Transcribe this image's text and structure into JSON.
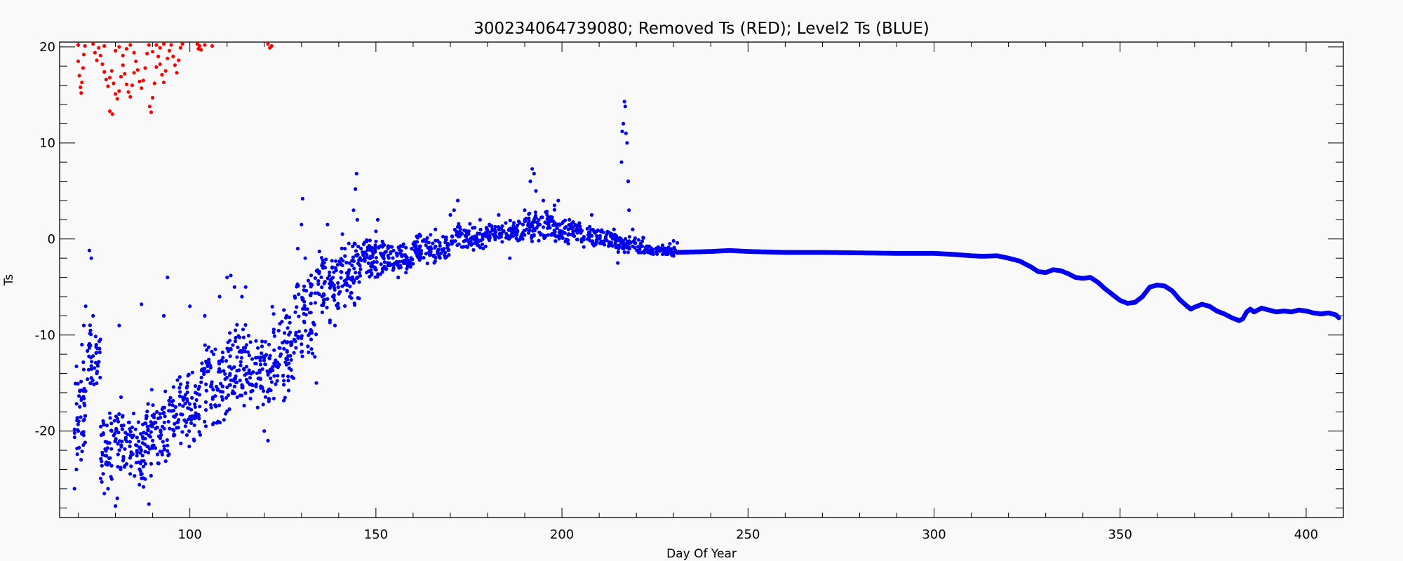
{
  "chart_data": {
    "type": "scatter",
    "title": "300234064739080; Removed Ts (RED); Level2 Ts (BLUE)",
    "xlabel": "Day Of Year",
    "ylabel": "Ts",
    "xlim": [
      65,
      410
    ],
    "ylim": [
      -29,
      20.5
    ],
    "x_ticks": [
      100,
      150,
      200,
      250,
      300,
      350,
      400
    ],
    "y_ticks": [
      -20,
      -10,
      0,
      10,
      20
    ],
    "x_minor_step": 10,
    "y_minor_step": 2,
    "grid": false,
    "colors": {
      "removed": "#ff0000",
      "level2": "#0000ee"
    },
    "series": [
      {
        "key": "removed",
        "color": "#ff0000",
        "points": [
          [
            70,
            20.2
          ],
          [
            70,
            18.5
          ],
          [
            70.3,
            17.0
          ],
          [
            70.6,
            15.8
          ],
          [
            70.8,
            15.2
          ],
          [
            71,
            16.3
          ],
          [
            71.3,
            17.8
          ],
          [
            71.5,
            19.2
          ],
          [
            71.8,
            20.1
          ],
          [
            74,
            20.3
          ],
          [
            74.5,
            19.4
          ],
          [
            75,
            18.6
          ],
          [
            75.5,
            19.9
          ],
          [
            76,
            19.1
          ],
          [
            76.5,
            18.2
          ],
          [
            77,
            17.4
          ],
          [
            77.5,
            16.6
          ],
          [
            78,
            15.9
          ],
          [
            78.5,
            16.8
          ],
          [
            79,
            17.5
          ],
          [
            79.5,
            16.2
          ],
          [
            80,
            15.1
          ],
          [
            80.5,
            14.6
          ],
          [
            81,
            15.4
          ],
          [
            81.5,
            16.9
          ],
          [
            82,
            18.1
          ],
          [
            82.5,
            17.2
          ],
          [
            83,
            16.1
          ],
          [
            83.5,
            15.3
          ],
          [
            84,
            14.8
          ],
          [
            84.5,
            16.0
          ],
          [
            85,
            17.3
          ],
          [
            85.5,
            18.5
          ],
          [
            86,
            17.6
          ],
          [
            86.5,
            16.4
          ],
          [
            87,
            15.7
          ],
          [
            87.5,
            16.5
          ],
          [
            88,
            17.8
          ],
          [
            88.5,
            19.3
          ],
          [
            89,
            20.2
          ],
          [
            77,
            20.1
          ],
          [
            78.5,
            13.3
          ],
          [
            79.2,
            13.0
          ],
          [
            80,
            19.6
          ],
          [
            81,
            20.0
          ],
          [
            82,
            19.1
          ],
          [
            83,
            19.8
          ],
          [
            84,
            20.2
          ],
          [
            85,
            19.4
          ],
          [
            89.2,
            13.8
          ],
          [
            89.6,
            13.2
          ],
          [
            90,
            14.7
          ],
          [
            90.5,
            16.2
          ],
          [
            91,
            17.9
          ],
          [
            91.5,
            19.0
          ],
          [
            92,
            18.2
          ],
          [
            92.5,
            17.1
          ],
          [
            93,
            16.3
          ],
          [
            93.5,
            17.5
          ],
          [
            94,
            18.8
          ],
          [
            94.5,
            19.6
          ],
          [
            95,
            20.2
          ],
          [
            95.5,
            19.0
          ],
          [
            96,
            18.1
          ],
          [
            96.5,
            17.3
          ],
          [
            97,
            18.6
          ],
          [
            97.5,
            19.9
          ],
          [
            98,
            20.3
          ],
          [
            90,
            19.5
          ],
          [
            91,
            20.2
          ],
          [
            92,
            19.9
          ],
          [
            93,
            20.3
          ],
          [
            102,
            20.3
          ],
          [
            102.3,
            19.8
          ],
          [
            102.6,
            20.1
          ],
          [
            103,
            19.7
          ],
          [
            104,
            20.2
          ],
          [
            106,
            20.1
          ],
          [
            121,
            20.3
          ],
          [
            121.5,
            19.9
          ],
          [
            122,
            20.1
          ]
        ]
      },
      {
        "key": "level2",
        "color": "#0000ee",
        "segments": [
          {
            "x0": 69,
            "x1": 72,
            "base": -18,
            "spread": 7.5,
            "n": 45
          },
          {
            "x0": 72,
            "x1": 76,
            "base": -12,
            "spread": 4,
            "n": 40
          },
          {
            "x0": 76,
            "x1": 82,
            "base": -21,
            "spread": 5,
            "n": 70
          },
          {
            "x0": 82,
            "x1": 88,
            "base": -22,
            "spread": 4,
            "n": 70
          },
          {
            "x0": 88,
            "x1": 95,
            "base": -20,
            "spread": 5,
            "n": 80
          },
          {
            "x0": 95,
            "x1": 103,
            "base": -18,
            "spread": 5,
            "n": 90
          },
          {
            "x0": 103,
            "x1": 110,
            "base": -15,
            "spread": 5,
            "n": 80
          },
          {
            "x0": 110,
            "x1": 116,
            "base": -13,
            "spread": 5,
            "n": 80
          },
          {
            "x0": 116,
            "x1": 122,
            "base": -14,
            "spread": 4,
            "n": 70
          },
          {
            "x0": 122,
            "x1": 128,
            "base": -12,
            "spread": 6,
            "n": 70
          },
          {
            "x0": 128,
            "x1": 134,
            "base": -8,
            "spread": 5,
            "n": 70
          },
          {
            "x0": 134,
            "x1": 140,
            "base": -5,
            "spread": 4,
            "n": 70
          },
          {
            "x0": 140,
            "x1": 146,
            "base": -4,
            "spread": 4,
            "n": 70
          },
          {
            "x0": 146,
            "x1": 152,
            "base": -2,
            "spread": 2.5,
            "n": 70
          },
          {
            "x0": 152,
            "x1": 160,
            "base": -2,
            "spread": 1.8,
            "n": 80
          },
          {
            "x0": 160,
            "x1": 170,
            "base": -1,
            "spread": 1.8,
            "n": 90
          },
          {
            "x0": 170,
            "x1": 180,
            "base": 0.2,
            "spread": 1.5,
            "n": 90
          },
          {
            "x0": 180,
            "x1": 190,
            "base": 0.8,
            "spread": 1.2,
            "n": 90
          },
          {
            "x0": 190,
            "x1": 198,
            "base": 1.5,
            "spread": 2.0,
            "n": 80
          },
          {
            "x0": 198,
            "x1": 205,
            "base": 0.8,
            "spread": 1.5,
            "n": 70
          },
          {
            "x0": 205,
            "x1": 215,
            "base": 0.2,
            "spread": 1.2,
            "n": 80
          },
          {
            "x0": 215,
            "x1": 222,
            "base": -0.6,
            "spread": 1.0,
            "n": 60
          },
          {
            "x0": 222,
            "x1": 231,
            "base": -1.2,
            "spread": 0.6,
            "n": 60
          }
        ],
        "extra_points": [
          [
            69,
            -26
          ],
          [
            69.5,
            -24
          ],
          [
            70,
            -20
          ],
          [
            71,
            -11
          ],
          [
            71.5,
            -9
          ],
          [
            72,
            -7
          ],
          [
            73,
            -1.2
          ],
          [
            73.5,
            -2
          ],
          [
            74,
            -8
          ],
          [
            75,
            -14
          ],
          [
            77,
            -26.5
          ],
          [
            78,
            -26
          ],
          [
            79,
            -25
          ],
          [
            80,
            -27.8
          ],
          [
            80.5,
            -27
          ],
          [
            81,
            -9
          ],
          [
            87,
            -6.8
          ],
          [
            88,
            -25
          ],
          [
            89,
            -27.6
          ],
          [
            94,
            -4
          ],
          [
            93,
            -8
          ],
          [
            100,
            -7
          ],
          [
            104,
            -8
          ],
          [
            108,
            -6
          ],
          [
            110,
            -4
          ],
          [
            111,
            -3.8
          ],
          [
            112,
            -5
          ],
          [
            114,
            -6
          ],
          [
            115,
            -5
          ],
          [
            120,
            -20
          ],
          [
            121,
            -21
          ],
          [
            126,
            -8
          ],
          [
            129,
            -1
          ],
          [
            130,
            1.5
          ],
          [
            130.3,
            4.2
          ],
          [
            131,
            -2
          ],
          [
            134,
            -15
          ],
          [
            137,
            1.5
          ],
          [
            139,
            -9
          ],
          [
            141,
            0.5
          ],
          [
            143,
            -6
          ],
          [
            144,
            3
          ],
          [
            144.5,
            5.2
          ],
          [
            144.8,
            6.8
          ],
          [
            145,
            2
          ],
          [
            146,
            -1
          ],
          [
            147,
            -2.3
          ],
          [
            150,
            0.8
          ],
          [
            150.5,
            2
          ],
          [
            156,
            -4
          ],
          [
            162,
            -2
          ],
          [
            166,
            1
          ],
          [
            170,
            2.5
          ],
          [
            172,
            4
          ],
          [
            171,
            3
          ],
          [
            178,
            2
          ],
          [
            183,
            2.5
          ],
          [
            186,
            -2
          ],
          [
            190,
            3
          ],
          [
            191.5,
            6
          ],
          [
            192,
            7.3
          ],
          [
            192.5,
            6.8
          ],
          [
            193,
            5
          ],
          [
            195,
            4
          ],
          [
            196,
            2.5
          ],
          [
            198,
            3.5
          ],
          [
            199,
            4
          ],
          [
            202,
            2
          ],
          [
            208,
            2.5
          ],
          [
            214,
            1
          ],
          [
            215,
            -2.5
          ],
          [
            216,
            8
          ],
          [
            216.2,
            11.2
          ],
          [
            216.5,
            12
          ],
          [
            216.8,
            14.3
          ],
          [
            217,
            13.8
          ],
          [
            217.2,
            11
          ],
          [
            217.5,
            10
          ],
          [
            217.8,
            6
          ],
          [
            218,
            3
          ],
          [
            219,
            1
          ],
          [
            228,
            -1
          ],
          [
            229,
            -0.5
          ],
          [
            230,
            -0.2
          ],
          [
            231,
            -0.4
          ]
        ],
        "smooth": [
          [
            231,
            -1.4
          ],
          [
            240,
            -1.3
          ],
          [
            245,
            -1.2
          ],
          [
            250,
            -1.3
          ],
          [
            255,
            -1.35
          ],
          [
            260,
            -1.4
          ],
          [
            270,
            -1.4
          ],
          [
            280,
            -1.45
          ],
          [
            290,
            -1.5
          ],
          [
            300,
            -1.5
          ],
          [
            305,
            -1.6
          ],
          [
            310,
            -1.75
          ],
          [
            313,
            -1.8
          ],
          [
            317,
            -1.75
          ],
          [
            320,
            -2.0
          ],
          [
            323,
            -2.3
          ],
          [
            326,
            -2.9
          ],
          [
            328,
            -3.4
          ],
          [
            330,
            -3.5
          ],
          [
            332,
            -3.2
          ],
          [
            334,
            -3.3
          ],
          [
            336,
            -3.6
          ],
          [
            338,
            -4.0
          ],
          [
            340,
            -4.1
          ],
          [
            342,
            -4.0
          ],
          [
            344,
            -4.5
          ],
          [
            346,
            -5.2
          ],
          [
            348,
            -5.8
          ],
          [
            350,
            -6.4
          ],
          [
            352,
            -6.7
          ],
          [
            354,
            -6.6
          ],
          [
            356,
            -6.0
          ],
          [
            358,
            -5.0
          ],
          [
            360,
            -4.8
          ],
          [
            362,
            -4.9
          ],
          [
            364,
            -5.4
          ],
          [
            366,
            -6.3
          ],
          [
            368,
            -7.0
          ],
          [
            369,
            -7.3
          ],
          [
            370,
            -7.1
          ],
          [
            372,
            -6.8
          ],
          [
            374,
            -7.0
          ],
          [
            376,
            -7.5
          ],
          [
            378,
            -7.8
          ],
          [
            380,
            -8.2
          ],
          [
            382,
            -8.5
          ],
          [
            383,
            -8.3
          ],
          [
            384,
            -7.6
          ],
          [
            385,
            -7.3
          ],
          [
            386,
            -7.6
          ],
          [
            387,
            -7.4
          ],
          [
            388,
            -7.2
          ],
          [
            390,
            -7.4
          ],
          [
            392,
            -7.6
          ],
          [
            394,
            -7.5
          ],
          [
            396,
            -7.6
          ],
          [
            398,
            -7.4
          ],
          [
            400,
            -7.5
          ],
          [
            402,
            -7.7
          ],
          [
            404,
            -7.8
          ],
          [
            406,
            -7.7
          ],
          [
            408,
            -7.9
          ],
          [
            409,
            -8.3
          ]
        ]
      }
    ]
  }
}
